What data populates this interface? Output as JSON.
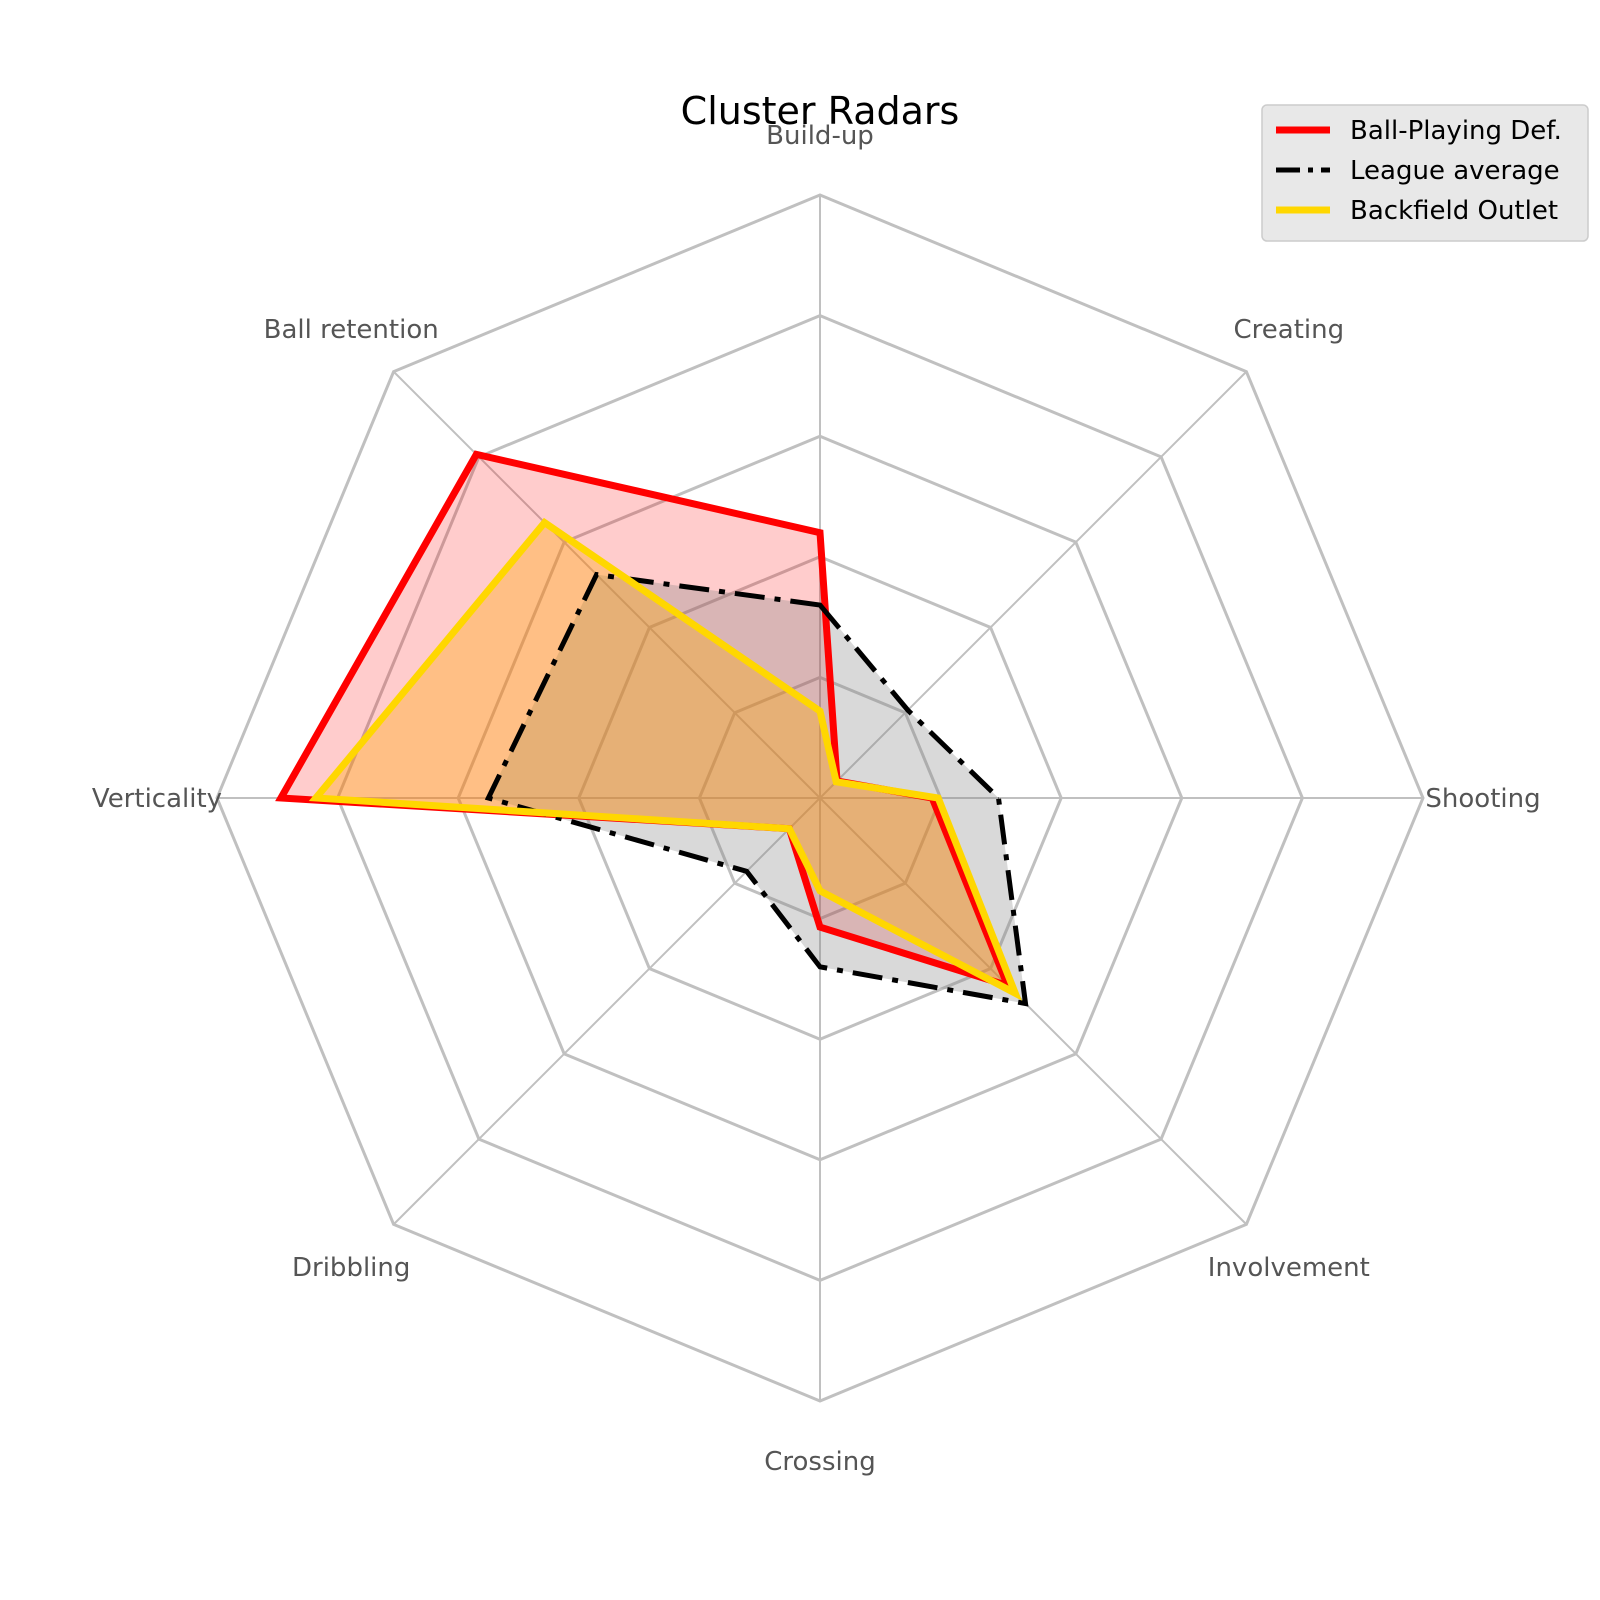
{
  "chart_data": {
    "type": "radar",
    "title": "Cluster Radars",
    "axes": [
      "Build-up",
      "Creating",
      "Shooting",
      "Involvement",
      "Crossing",
      "Dribbling",
      "Verticality",
      "Ball retention"
    ],
    "rlim": [
      0,
      5
    ],
    "ring_count": 5,
    "grid": true,
    "legend_position": "top-right",
    "series": [
      {
        "name": "Ball-Playing Def.",
        "values": [
          2.2,
          0.2,
          0.93,
          2.2,
          1.07,
          0.36,
          4.47,
          4.03
        ],
        "color": "#ff0000",
        "fill": "#ff0000",
        "fill_opacity": 0.2,
        "line_style": "solid"
      },
      {
        "name": "League average",
        "values": [
          1.6,
          1.03,
          1.48,
          2.41,
          1.4,
          0.86,
          2.75,
          2.62
        ],
        "color": "#000000",
        "fill": "#808080",
        "fill_opacity": 0.3,
        "line_style": "dashdot"
      },
      {
        "name": "Backfield Outlet",
        "values": [
          0.72,
          0.19,
          0.98,
          2.29,
          0.77,
          0.36,
          4.18,
          3.23
        ],
        "color": "#ffd700",
        "fill": "#ffa500",
        "fill_opacity": 0.35,
        "line_style": "solid"
      }
    ]
  }
}
